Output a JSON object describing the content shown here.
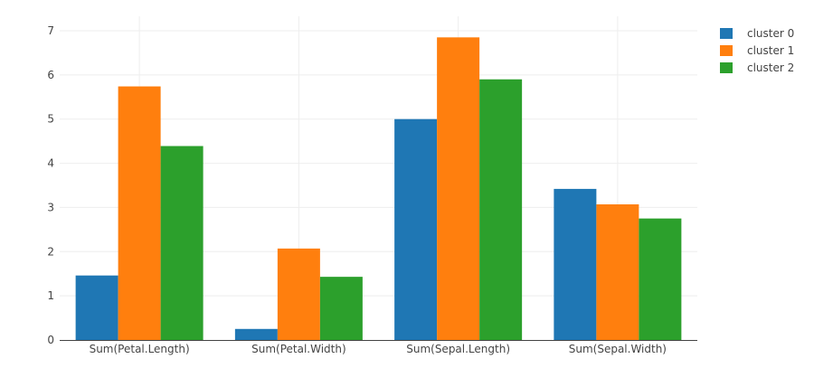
{
  "chart_data": {
    "type": "bar",
    "categories": [
      "Sum(Petal.Length)",
      "Sum(Petal.Width)",
      "Sum(Sepal.Length)",
      "Sum(Sepal.Width)"
    ],
    "series": [
      {
        "name": "cluster 0",
        "color": "#1f77b4",
        "values": [
          1.46,
          0.25,
          5.0,
          3.42
        ]
      },
      {
        "name": "cluster 1",
        "color": "#ff7f0e",
        "values": [
          5.74,
          2.07,
          6.85,
          3.07
        ]
      },
      {
        "name": "cluster 2",
        "color": "#2ca02c",
        "values": [
          4.39,
          1.43,
          5.9,
          2.75
        ]
      }
    ],
    "ylim": [
      0,
      7
    ],
    "yticks": [
      0,
      1,
      2,
      3,
      4,
      5,
      6,
      7
    ],
    "grid": true,
    "legend_position": "top-right"
  }
}
